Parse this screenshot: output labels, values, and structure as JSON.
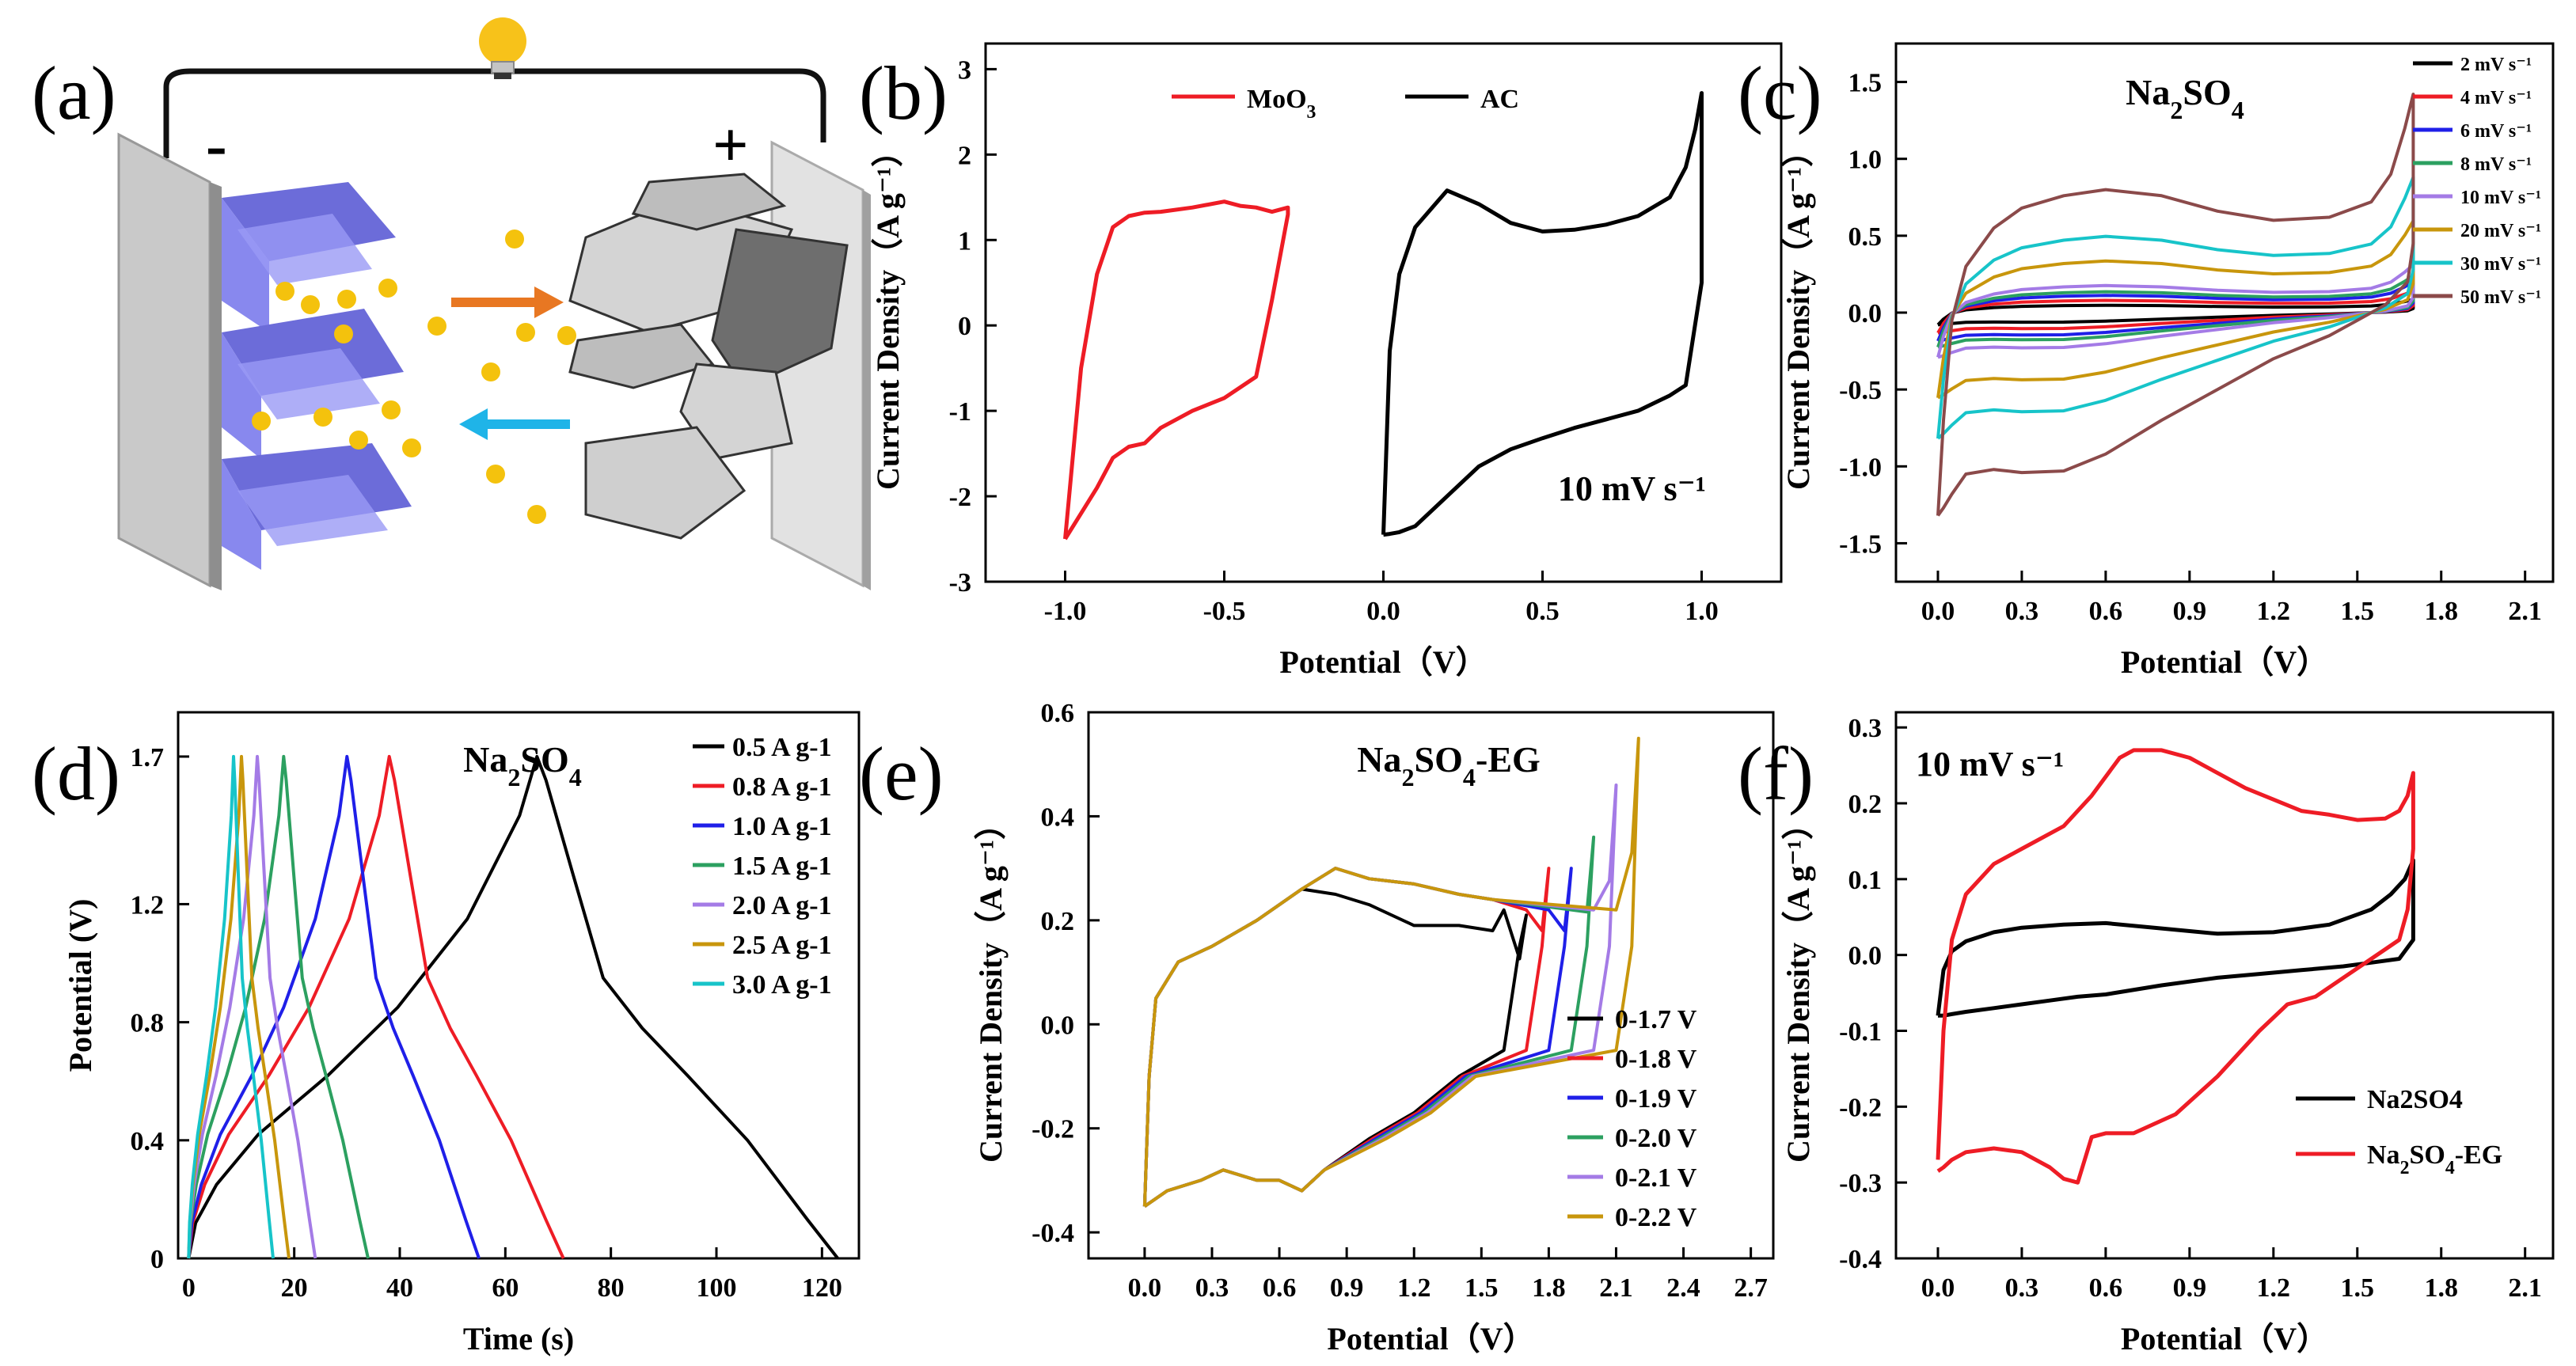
{
  "panel_labels": [
    "(a)",
    "(b)",
    "(c)",
    "(d)",
    "(e)",
    "(f)"
  ],
  "schematic": {
    "minus_label": "-",
    "plus_label": "+",
    "bulb_icon": "lightbulb-icon",
    "colors": {
      "anode": "#7b7bf0",
      "ion": "#f4c20d",
      "charge_arrow": "#e87722",
      "discharge_arrow": "#1fb4e8",
      "carbon": "#c8c8c8"
    }
  },
  "chart_data": [
    {
      "id": "b",
      "type": "line",
      "title": "",
      "annotation": "10 mV s⁻¹",
      "xlabel": "Potential（V）",
      "ylabel": "Current Density（A g⁻¹）",
      "xlim": [
        -1.25,
        1.25
      ],
      "ylim": [
        -3,
        3.3
      ],
      "xticks": [
        -1.0,
        -0.5,
        0.0,
        0.5,
        1.0
      ],
      "xtick_labels": [
        "-1.0",
        "-0.5",
        "0.0",
        "0.5",
        "1.0"
      ],
      "yticks": [
        -3,
        -2,
        -1,
        0,
        1,
        2,
        3
      ],
      "ytick_labels": [
        "-3",
        "-2",
        "-1",
        "0",
        "1",
        "2",
        "3"
      ],
      "legend": {
        "placement": "top",
        "entries": [
          {
            "text": "MoO",
            "sub": "3"
          },
          {
            "text": "AC",
            "sub": ""
          }
        ]
      },
      "series": [
        {
          "name": "MoO3",
          "color": "#ee1c25",
          "x": [
            -1.0,
            -0.95,
            -0.9,
            -0.85,
            -0.8,
            -0.75,
            -0.7,
            -0.6,
            -0.5,
            -0.45,
            -0.4,
            -0.35,
            -0.3,
            -0.3,
            -0.35,
            -0.4,
            -0.5,
            -0.6,
            -0.7,
            -0.75,
            -0.8,
            -0.85,
            -0.9,
            -0.95,
            -1.0
          ],
          "y": [
            -2.5,
            -0.5,
            0.6,
            1.15,
            1.28,
            1.32,
            1.33,
            1.38,
            1.45,
            1.4,
            1.38,
            1.33,
            1.38,
            1.3,
            0.3,
            -0.6,
            -0.85,
            -1.0,
            -1.2,
            -1.38,
            -1.42,
            -1.55,
            -1.9,
            -2.2,
            -2.5
          ]
        },
        {
          "name": "AC",
          "color": "#000000",
          "x": [
            0.0,
            0.02,
            0.05,
            0.1,
            0.2,
            0.3,
            0.4,
            0.5,
            0.6,
            0.7,
            0.8,
            0.9,
            0.95,
            0.98,
            1.0,
            1.0,
            0.95,
            0.9,
            0.8,
            0.7,
            0.6,
            0.5,
            0.4,
            0.3,
            0.2,
            0.1,
            0.05,
            0.02,
            0.0
          ],
          "y": [
            -2.45,
            -0.3,
            0.6,
            1.15,
            1.58,
            1.42,
            1.2,
            1.1,
            1.12,
            1.18,
            1.28,
            1.5,
            1.85,
            2.3,
            2.72,
            0.5,
            -0.7,
            -0.82,
            -1.0,
            -1.1,
            -1.2,
            -1.32,
            -1.45,
            -1.65,
            -2.0,
            -2.35,
            -2.42,
            -2.44,
            -2.45
          ]
        }
      ]
    },
    {
      "id": "c",
      "type": "line",
      "title": "Na2SO4",
      "title_parts": [
        "Na",
        "2",
        "SO",
        "4"
      ],
      "xlabel": "Potential（V）",
      "ylabel": "Current Density（A g⁻¹）",
      "xlim": [
        -0.15,
        2.2
      ],
      "ylim": [
        -1.75,
        1.75
      ],
      "xticks": [
        0.0,
        0.3,
        0.6,
        0.9,
        1.2,
        1.5,
        1.8,
        2.1
      ],
      "xtick_labels": [
        "0.0",
        "0.3",
        "0.6",
        "0.9",
        "1.2",
        "1.5",
        "1.8",
        "2.1"
      ],
      "yticks": [
        -1.5,
        -1.0,
        -0.5,
        0.0,
        0.5,
        1.0,
        1.5
      ],
      "ytick_labels": [
        "-1.5",
        "-1.0",
        "-0.5",
        "0.0",
        "0.5",
        "1.0",
        "1.5"
      ],
      "legend": {
        "placement": "top-right",
        "entries": [
          "2 mV s⁻¹",
          "4 mV s⁻¹",
          "6 mV s⁻¹",
          "8 mV s⁻¹",
          "10 mV s⁻¹",
          "20 mV s⁻¹",
          "30 mV s⁻¹",
          "50 mV s⁻¹"
        ]
      },
      "series": [
        {
          "name": "2 mV s-1",
          "color": "#000000",
          "scale": 0.06
        },
        {
          "name": "4 mV s-1",
          "color": "#ee1c25",
          "scale": 0.1
        },
        {
          "name": "6 mV s-1",
          "color": "#1f1fe8",
          "scale": 0.14
        },
        {
          "name": "8 mV s-1",
          "color": "#2ca060",
          "scale": 0.17
        },
        {
          "name": "10 mV s-1",
          "color": "#a47be6",
          "scale": 0.22
        },
        {
          "name": "20 mV s-1",
          "color": "#c8960c",
          "scale": 0.42
        },
        {
          "name": "30 mV s-1",
          "color": "#17c4c9",
          "scale": 0.62
        },
        {
          "name": "50 mV s-1",
          "color": "#8b4a4a",
          "scale": 1.0
        }
      ],
      "base_shape": {
        "x": [
          0.0,
          0.02,
          0.05,
          0.1,
          0.2,
          0.3,
          0.45,
          0.6,
          0.8,
          1.0,
          1.2,
          1.4,
          1.55,
          1.62,
          1.67,
          1.7,
          1.7,
          1.68,
          1.6,
          1.5,
          1.4,
          1.2,
          1.0,
          0.8,
          0.6,
          0.45,
          0.3,
          0.2,
          0.1,
          0.05,
          0.02,
          0.0
        ],
        "y": [
          -1.32,
          -0.7,
          -0.05,
          0.3,
          0.55,
          0.68,
          0.76,
          0.8,
          0.76,
          0.66,
          0.6,
          0.62,
          0.72,
          0.9,
          1.2,
          1.42,
          0.45,
          0.2,
          0.05,
          -0.05,
          -0.15,
          -0.3,
          -0.5,
          -0.7,
          -0.92,
          -1.03,
          -1.04,
          -1.02,
          -1.05,
          -1.18,
          -1.27,
          -1.32
        ]
      }
    },
    {
      "id": "d",
      "type": "line",
      "title": "Na2SO4",
      "title_parts": [
        "Na",
        "2",
        "SO",
        "4"
      ],
      "xlabel": "Time (s)",
      "ylabel": "Potential (V)",
      "xlim": [
        -2,
        127
      ],
      "ylim": [
        0,
        1.85
      ],
      "xticks": [
        0,
        20,
        40,
        60,
        80,
        100,
        120
      ],
      "xtick_labels": [
        "0",
        "20",
        "40",
        "60",
        "80",
        "100",
        "120"
      ],
      "yticks": [
        0,
        0.4,
        0.8,
        1.2,
        1.7
      ],
      "ytick_labels": [
        "0",
        "0.4",
        "0.8",
        "1.2",
        "1.7"
      ],
      "legend": {
        "placement": "top-right",
        "entries": [
          "0.5 A g-1",
          "0.8 A g-1",
          "1.0 A g-1",
          "1.5 A g-1",
          "2.0 A g-1",
          "2.5 A g-1",
          "3.0 A g-1"
        ]
      },
      "series": [
        {
          "name": "0.5 A g-1",
          "color": "#000000",
          "peak_time": 66,
          "end_time": 123
        },
        {
          "name": "0.8 A g-1",
          "color": "#ee1c25",
          "peak_time": 38,
          "end_time": 71
        },
        {
          "name": "1.0 A g-1",
          "color": "#1f1fe8",
          "peak_time": 30,
          "end_time": 55
        },
        {
          "name": "1.5 A g-1",
          "color": "#2ca060",
          "peak_time": 18,
          "end_time": 34
        },
        {
          "name": "2.0 A g-1",
          "color": "#a47be6",
          "peak_time": 13,
          "end_time": 24
        },
        {
          "name": "2.5 A g-1",
          "color": "#c8960c",
          "peak_time": 10,
          "end_time": 19
        },
        {
          "name": "3.0 A g-1",
          "color": "#17c4c9",
          "peak_time": 8.5,
          "end_time": 16
        }
      ],
      "peak_potential": 1.7
    },
    {
      "id": "e",
      "type": "line",
      "title": "Na2SO4-EG",
      "title_parts": [
        "Na",
        "2",
        "SO",
        "4",
        "-EG"
      ],
      "xlabel": "Potential（V）",
      "ylabel": "Current Density（A g⁻¹）",
      "xlim": [
        -0.25,
        2.8
      ],
      "ylim": [
        -0.45,
        0.6
      ],
      "xticks": [
        0.0,
        0.3,
        0.6,
        0.9,
        1.2,
        1.5,
        1.8,
        2.1,
        2.4,
        2.7
      ],
      "xtick_labels": [
        "0.0",
        "0.3",
        "0.6",
        "0.9",
        "1.2",
        "1.5",
        "1.8",
        "2.1",
        "2.4",
        "2.7"
      ],
      "yticks": [
        -0.4,
        -0.2,
        0.0,
        0.2,
        0.4,
        0.6
      ],
      "ytick_labels": [
        "-0.4",
        "-0.2",
        "0.0",
        "0.2",
        "0.4",
        "0.6"
      ],
      "legend": {
        "placement": "bottom-right",
        "entries": [
          "0-1.7 V",
          "0-1.8 V",
          "0-1.9 V",
          "0-2.0 V",
          "0-2.1 V",
          "0-2.2 V"
        ]
      },
      "series": [
        {
          "name": "0-1.7 V",
          "color": "#000000",
          "vmax": 1.7,
          "imax": 0.21
        },
        {
          "name": "0-1.8 V",
          "color": "#ee1c25",
          "vmax": 1.8,
          "imax": 0.3
        },
        {
          "name": "0-1.9 V",
          "color": "#1f1fe8",
          "vmax": 1.9,
          "imax": 0.3
        },
        {
          "name": "0-2.0 V",
          "color": "#2ca060",
          "vmax": 2.0,
          "imax": 0.36
        },
        {
          "name": "0-2.1 V",
          "color": "#a47be6",
          "vmax": 2.1,
          "imax": 0.46
        },
        {
          "name": "0-2.2 V",
          "color": "#c8960c",
          "vmax": 2.2,
          "imax": 0.55
        }
      ]
    },
    {
      "id": "f",
      "type": "line",
      "title": "",
      "annotation": "10 mV s⁻¹",
      "xlabel": "Potential（V）",
      "ylabel": "Current Density（A g⁻¹）",
      "xlim": [
        -0.15,
        2.2
      ],
      "ylim": [
        -0.4,
        0.32
      ],
      "xticks": [
        0.0,
        0.3,
        0.6,
        0.9,
        1.2,
        1.5,
        1.8,
        2.1
      ],
      "xtick_labels": [
        "0.0",
        "0.3",
        "0.6",
        "0.9",
        "1.2",
        "1.5",
        "1.8",
        "2.1"
      ],
      "yticks": [
        -0.4,
        -0.3,
        -0.2,
        -0.1,
        0.0,
        0.1,
        0.2,
        0.3
      ],
      "ytick_labels": [
        "-0.4",
        "-0.3",
        "-0.2",
        "-0.1",
        "0.0",
        "0.1",
        "0.2",
        "0.3"
      ],
      "legend": {
        "placement": "bottom-right",
        "entries": [
          {
            "text": "Na2SO4",
            "parts": [
              "Na2SO4"
            ]
          },
          {
            "text": "Na2SO4-EG",
            "parts": [
              "Na",
              "2",
              "SO",
              "4",
              "-EG"
            ]
          }
        ]
      },
      "series": [
        {
          "name": "Na2SO4",
          "color": "#000000",
          "x": [
            0.0,
            0.02,
            0.05,
            0.1,
            0.2,
            0.3,
            0.45,
            0.6,
            0.8,
            1.0,
            1.2,
            1.4,
            1.55,
            1.62,
            1.67,
            1.7,
            1.7,
            1.65,
            1.55,
            1.45,
            1.3,
            1.15,
            1.0,
            0.8,
            0.6,
            0.5,
            0.4,
            0.3,
            0.2,
            0.1,
            0.05,
            0.02,
            0.0
          ],
          "y": [
            -0.08,
            -0.02,
            0.005,
            0.018,
            0.03,
            0.036,
            0.04,
            0.042,
            0.035,
            0.028,
            0.03,
            0.04,
            0.06,
            0.08,
            0.1,
            0.125,
            0.02,
            -0.005,
            -0.01,
            -0.015,
            -0.02,
            -0.025,
            -0.03,
            -0.04,
            -0.052,
            -0.055,
            -0.06,
            -0.065,
            -0.07,
            -0.075,
            -0.078,
            -0.08,
            -0.08
          ]
        },
        {
          "name": "Na2SO4-EG",
          "color": "#ee1c25",
          "x": [
            0.0,
            0.02,
            0.05,
            0.1,
            0.2,
            0.3,
            0.45,
            0.55,
            0.65,
            0.7,
            0.8,
            0.9,
            1.0,
            1.1,
            1.2,
            1.3,
            1.4,
            1.5,
            1.6,
            1.65,
            1.68,
            1.7,
            1.7,
            1.68,
            1.65,
            1.55,
            1.45,
            1.35,
            1.25,
            1.15,
            1.0,
            0.85,
            0.7,
            0.6,
            0.55,
            0.5,
            0.45,
            0.4,
            0.3,
            0.2,
            0.1,
            0.05,
            0.02,
            0.0
          ],
          "y": [
            -0.27,
            -0.1,
            0.02,
            0.08,
            0.12,
            0.14,
            0.17,
            0.21,
            0.26,
            0.27,
            0.27,
            0.26,
            0.24,
            0.22,
            0.205,
            0.19,
            0.185,
            0.178,
            0.18,
            0.19,
            0.21,
            0.24,
            0.14,
            0.06,
            0.02,
            -0.005,
            -0.03,
            -0.055,
            -0.065,
            -0.1,
            -0.16,
            -0.21,
            -0.235,
            -0.235,
            -0.24,
            -0.3,
            -0.295,
            -0.28,
            -0.26,
            -0.255,
            -0.26,
            -0.27,
            -0.28,
            -0.285
          ]
        }
      ]
    }
  ]
}
